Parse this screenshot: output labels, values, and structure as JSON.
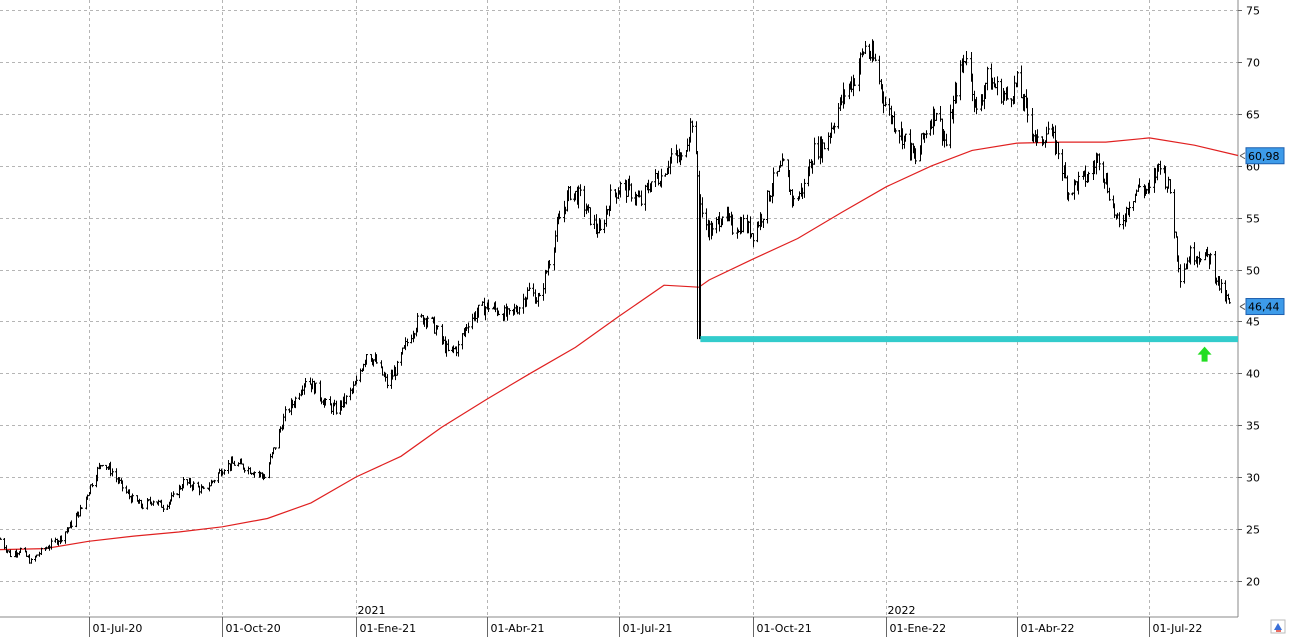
{
  "chart_data": {
    "type": "line",
    "title": "",
    "xlabel": "",
    "ylabel": "",
    "x_range": [
      "2020-05-01",
      "2022-08-31"
    ],
    "ylim": [
      16.5,
      76
    ],
    "y_ticks": [
      20,
      25,
      30,
      35,
      40,
      45,
      50,
      55,
      60,
      65,
      70,
      75
    ],
    "x_ticks": [
      {
        "date": "2020-07-01",
        "label": "01-Jul-20"
      },
      {
        "date": "2020-10-01",
        "label": "01-Oct-20"
      },
      {
        "date": "2021-01-01",
        "label": "01-Ene-21"
      },
      {
        "date": "2021-04-01",
        "label": "01-Abr-21"
      },
      {
        "date": "2021-07-01",
        "label": "01-Jul-21"
      },
      {
        "date": "2021-10-01",
        "label": "01-Oct-21"
      },
      {
        "date": "2022-01-01",
        "label": "01-Ene-22"
      },
      {
        "date": "2022-04-01",
        "label": "01-Abr-22"
      },
      {
        "date": "2022-07-01",
        "label": "01-Jul-22"
      }
    ],
    "year_labels": [
      {
        "date": "2021-01-01",
        "label": "2021"
      },
      {
        "date": "2022-01-01",
        "label": "2022"
      }
    ],
    "grid": true,
    "colors": {
      "price": "#000000",
      "ma": "#e02020",
      "support": "#33cccc",
      "arrow": "#22dd22",
      "badge": "#3d9be9"
    },
    "series": [
      {
        "kind": "price-bars",
        "points": [
          [
            "2020-05-01",
            24
          ],
          [
            "2020-05-08",
            22.5
          ],
          [
            "2020-05-15",
            23
          ],
          [
            "2020-05-22",
            21.8
          ],
          [
            "2020-05-29",
            22.8
          ],
          [
            "2020-06-05",
            23.5
          ],
          [
            "2020-06-12",
            24.2
          ],
          [
            "2020-06-19",
            25.5
          ],
          [
            "2020-06-26",
            27
          ],
          [
            "2020-07-03",
            29.5
          ],
          [
            "2020-07-10",
            31.5
          ],
          [
            "2020-07-17",
            30.5
          ],
          [
            "2020-07-24",
            29
          ],
          [
            "2020-07-31",
            27.8
          ],
          [
            "2020-08-07",
            27.2
          ],
          [
            "2020-08-14",
            27.8
          ],
          [
            "2020-08-21",
            27.2
          ],
          [
            "2020-08-28",
            28
          ],
          [
            "2020-09-04",
            29.5
          ],
          [
            "2020-09-11",
            29.2
          ],
          [
            "2020-09-18",
            28.6
          ],
          [
            "2020-09-25",
            29.8
          ],
          [
            "2020-10-02",
            31
          ],
          [
            "2020-10-09",
            31.3
          ],
          [
            "2020-10-16",
            31
          ],
          [
            "2020-10-23",
            30.5
          ],
          [
            "2020-10-30",
            30
          ],
          [
            "2020-11-06",
            33
          ],
          [
            "2020-11-13",
            36
          ],
          [
            "2020-11-20",
            37.5
          ],
          [
            "2020-11-27",
            39.5
          ],
          [
            "2020-12-04",
            38.5
          ],
          [
            "2020-12-11",
            37
          ],
          [
            "2020-12-18",
            36.5
          ],
          [
            "2020-12-25",
            37.5
          ],
          [
            "2021-01-01",
            39
          ],
          [
            "2021-01-08",
            42
          ],
          [
            "2021-01-15",
            41
          ],
          [
            "2021-01-22",
            39
          ],
          [
            "2021-01-29",
            40.5
          ],
          [
            "2021-02-05",
            43
          ],
          [
            "2021-02-12",
            45
          ],
          [
            "2021-02-19",
            45.5
          ],
          [
            "2021-02-26",
            44
          ],
          [
            "2021-03-05",
            42
          ],
          [
            "2021-03-12",
            42.5
          ],
          [
            "2021-03-19",
            45
          ],
          [
            "2021-03-26",
            46
          ],
          [
            "2021-04-02",
            46.5
          ],
          [
            "2021-04-09",
            46
          ],
          [
            "2021-04-16",
            45.5
          ],
          [
            "2021-04-23",
            46.5
          ],
          [
            "2021-04-30",
            48
          ],
          [
            "2021-05-07",
            47
          ],
          [
            "2021-05-14",
            51
          ],
          [
            "2021-05-21",
            55
          ],
          [
            "2021-05-28",
            57.5
          ],
          [
            "2021-06-04",
            57
          ],
          [
            "2021-06-11",
            55
          ],
          [
            "2021-06-18",
            53.5
          ],
          [
            "2021-06-25",
            57
          ],
          [
            "2021-07-02",
            58
          ],
          [
            "2021-07-09",
            57.5
          ],
          [
            "2021-07-16",
            56.5
          ],
          [
            "2021-07-23",
            58.5
          ],
          [
            "2021-07-30",
            59
          ],
          [
            "2021-08-06",
            61
          ],
          [
            "2021-08-13",
            60.5
          ],
          [
            "2021-08-20",
            64.5
          ],
          [
            "2021-08-27",
            55
          ],
          [
            "2021-09-03",
            53.5
          ],
          [
            "2021-09-10",
            55.5
          ],
          [
            "2021-09-17",
            54
          ],
          [
            "2021-09-24",
            54.5
          ],
          [
            "2021-10-01",
            53.5
          ],
          [
            "2021-10-08",
            55.5
          ],
          [
            "2021-10-15",
            58.5
          ],
          [
            "2021-10-22",
            60
          ],
          [
            "2021-10-29",
            56.5
          ],
          [
            "2021-11-05",
            58
          ],
          [
            "2021-11-12",
            61.5
          ],
          [
            "2021-11-19",
            62
          ],
          [
            "2021-11-26",
            64.5
          ],
          [
            "2021-12-03",
            67
          ],
          [
            "2021-12-10",
            68.5
          ],
          [
            "2021-12-17",
            71.5
          ],
          [
            "2021-12-24",
            70
          ],
          [
            "2021-12-31",
            66
          ],
          [
            "2022-01-07",
            64
          ],
          [
            "2022-01-14",
            62.5
          ],
          [
            "2022-01-21",
            60.5
          ],
          [
            "2022-01-28",
            63.5
          ],
          [
            "2022-02-04",
            65.5
          ],
          [
            "2022-02-11",
            62
          ],
          [
            "2022-02-18",
            67.5
          ],
          [
            "2022-02-25",
            71
          ],
          [
            "2022-03-04",
            65
          ],
          [
            "2022-03-11",
            68.5
          ],
          [
            "2022-03-18",
            67.5
          ],
          [
            "2022-03-25",
            66.5
          ],
          [
            "2022-04-01",
            68
          ],
          [
            "2022-04-08",
            65
          ],
          [
            "2022-04-15",
            62
          ],
          [
            "2022-04-22",
            63.5
          ],
          [
            "2022-04-29",
            61.5
          ],
          [
            "2022-05-06",
            57.5
          ],
          [
            "2022-05-13",
            58.5
          ],
          [
            "2022-05-20",
            59
          ],
          [
            "2022-05-27",
            61
          ],
          [
            "2022-06-03",
            57.5
          ],
          [
            "2022-06-10",
            54
          ],
          [
            "2022-06-17",
            56.5
          ],
          [
            "2022-06-24",
            58
          ],
          [
            "2022-07-01",
            57.5
          ],
          [
            "2022-07-08",
            60.5
          ],
          [
            "2022-07-15",
            57.5
          ],
          [
            "2022-07-22",
            49.5
          ],
          [
            "2022-07-29",
            51.5
          ],
          [
            "2022-08-05",
            51.5
          ],
          [
            "2022-08-12",
            51
          ],
          [
            "2022-08-19",
            48
          ],
          [
            "2022-08-26",
            46.44
          ]
        ]
      },
      {
        "kind": "moving-average",
        "points": [
          [
            "2020-05-01",
            23
          ],
          [
            "2020-06-01",
            23.1
          ],
          [
            "2020-07-01",
            23.8
          ],
          [
            "2020-08-01",
            24.3
          ],
          [
            "2020-09-01",
            24.7
          ],
          [
            "2020-10-01",
            25.2
          ],
          [
            "2020-11-01",
            26
          ],
          [
            "2020-12-01",
            27.5
          ],
          [
            "2021-01-01",
            30
          ],
          [
            "2021-02-01",
            32
          ],
          [
            "2021-03-01",
            34.8
          ],
          [
            "2021-04-01",
            37.5
          ],
          [
            "2021-05-01",
            40
          ],
          [
            "2021-06-01",
            42.5
          ],
          [
            "2021-07-01",
            45.5
          ],
          [
            "2021-08-01",
            48.5
          ],
          [
            "2021-08-25",
            48.3
          ],
          [
            "2021-09-01",
            49
          ],
          [
            "2021-10-01",
            51
          ],
          [
            "2021-11-01",
            53
          ],
          [
            "2021-12-01",
            55.5
          ],
          [
            "2022-01-01",
            58
          ],
          [
            "2022-02-01",
            60
          ],
          [
            "2022-03-01",
            61.5
          ],
          [
            "2022-04-01",
            62.2
          ],
          [
            "2022-05-01",
            62.3
          ],
          [
            "2022-06-01",
            62.3
          ],
          [
            "2022-07-01",
            62.7
          ],
          [
            "2022-08-01",
            62
          ],
          [
            "2022-08-31",
            61
          ]
        ]
      }
    ],
    "annotations": {
      "support_level": 43.3,
      "support_from": "2021-08-26",
      "support_to": "2022-08-31",
      "ma_last_label": "60,98",
      "ma_last_value": 60.98,
      "price_last_label": "46,44",
      "price_last_value": 46.44,
      "arrow_date": "2022-08-08",
      "arrow_value": 41.8
    }
  }
}
